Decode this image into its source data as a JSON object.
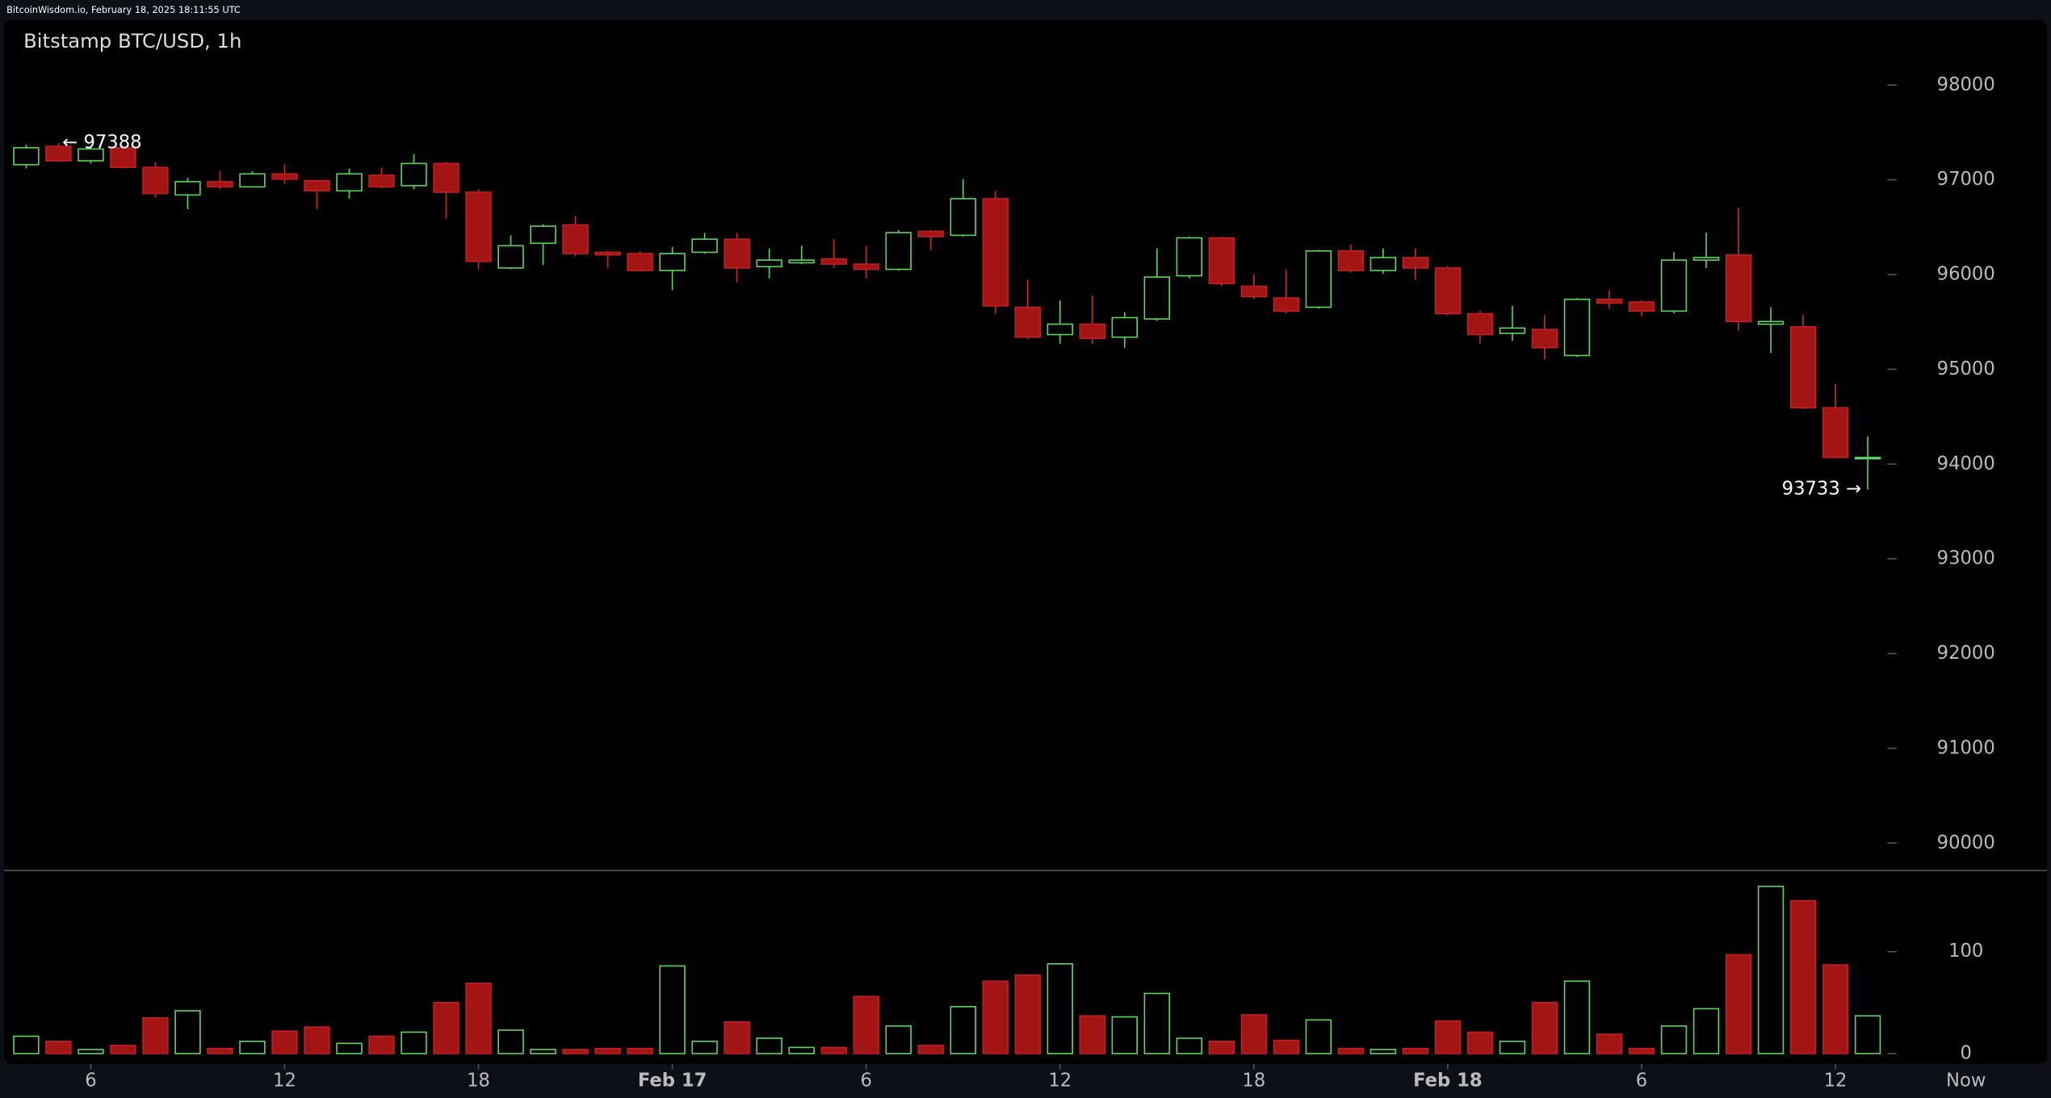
{
  "chart_data": {
    "type": "candlestick",
    "header": "BitcoinWisdom.io, February 18, 2025 18:11:55 UTC",
    "title": "Bitstamp BTC/USD, 1h",
    "high_label": "← 97388",
    "low_label": "93733 →",
    "now_label": "Now",
    "categories": [
      null,
      null,
      "6",
      null,
      null,
      null,
      null,
      null,
      "12",
      null,
      null,
      null,
      null,
      null,
      "18",
      null,
      null,
      null,
      null,
      null,
      "Feb 17",
      null,
      null,
      null,
      null,
      null,
      "6",
      null,
      null,
      null,
      null,
      null,
      "12",
      null,
      null,
      null,
      null,
      null,
      "18",
      null,
      null,
      null,
      null,
      null,
      "Feb 18",
      null,
      null,
      null,
      null,
      null,
      "6",
      null,
      null,
      null,
      null,
      null,
      "12",
      null
    ],
    "open": [
      97159,
      97352,
      97200,
      97338,
      97131,
      96840,
      96980,
      96925,
      97062,
      96990,
      96883,
      97048,
      96938,
      97172,
      96869,
      96069,
      96330,
      96524,
      96235,
      96221,
      96042,
      96235,
      96373,
      96083,
      96124,
      96166,
      96110,
      96055,
      96456,
      96414,
      96800,
      95655,
      95366,
      95476,
      95339,
      95531,
      95987,
      96387,
      95876,
      95752,
      95655,
      96249,
      96042,
      96179,
      96069,
      95587,
      95380,
      95421,
      95145,
      95738,
      95710,
      95614,
      96152,
      96207,
      95476,
      95449,
      94594,
      94056
    ],
    "high": [
      97370,
      97388,
      97350,
      97360,
      97186,
      97020,
      97090,
      97090,
      97160,
      97000,
      97117,
      97130,
      97270,
      97190,
      96900,
      96414,
      96530,
      96620,
      96250,
      96250,
      96290,
      96440,
      96440,
      96276,
      96304,
      96373,
      96304,
      96470,
      96470,
      97007,
      96883,
      95945,
      95725,
      95780,
      95600,
      96276,
      96400,
      96400,
      96000,
      96055,
      96260,
      96318,
      96276,
      96276,
      96090,
      95620,
      95669,
      95573,
      95750,
      95835,
      95730,
      96235,
      96442,
      96704,
      95655,
      95573,
      94842,
      94290
    ],
    "low": [
      97120,
      97186,
      97170,
      97120,
      96814,
      96690,
      96900,
      96920,
      96960,
      96690,
      96800,
      96910,
      96900,
      96593,
      96055,
      96055,
      96100,
      96190,
      96069,
      96030,
      95835,
      96220,
      95918,
      95959,
      96110,
      96070,
      95959,
      96040,
      96262,
      96400,
      95587,
      95320,
      95270,
      95270,
      95228,
      95510,
      95960,
      95880,
      95740,
      95590,
      95640,
      96020,
      96010,
      95945,
      95570,
      95270,
      95300,
      95104,
      95130,
      95640,
      95560,
      95590,
      96069,
      95407,
      95173,
      94580,
      94060,
      93733
    ],
    "close": [
      97338,
      97200,
      97325,
      97131,
      96855,
      96980,
      96925,
      97062,
      97007,
      96883,
      97062,
      96925,
      97172,
      96869,
      96138,
      96304,
      96510,
      96221,
      96207,
      96042,
      96221,
      96373,
      96069,
      96152,
      96152,
      96110,
      96055,
      96442,
      96400,
      96800,
      95669,
      95339,
      95476,
      95325,
      95545,
      95973,
      96387,
      95904,
      95766,
      95614,
      96249,
      96042,
      96179,
      96069,
      95587,
      95366,
      95435,
      95228,
      95738,
      95697,
      95614,
      96152,
      96179,
      95504,
      95504,
      94594,
      94070,
      94070
    ],
    "volume": [
      17,
      12,
      4,
      8,
      35,
      42,
      5,
      12,
      22,
      26,
      10,
      17,
      21,
      50,
      69,
      23,
      4,
      4,
      5,
      5,
      86,
      12,
      31,
      15,
      6,
      6,
      56,
      27,
      8,
      46,
      71,
      77,
      88,
      37,
      36,
      59,
      15,
      12,
      38,
      13,
      33,
      5,
      4,
      5,
      32,
      21,
      12,
      50,
      71,
      19,
      5,
      27,
      44,
      97,
      164,
      150,
      87,
      37
    ],
    "up_color": "#5fd35f",
    "down_color": "#a31515",
    "ylim": [
      89724,
      98690
    ],
    "yticks": [
      90000,
      91000,
      92000,
      93000,
      94000,
      95000,
      96000,
      97000,
      98000
    ],
    "volume_ylim": [
      0,
      177
    ],
    "volume_yticks": [
      0,
      100
    ]
  }
}
